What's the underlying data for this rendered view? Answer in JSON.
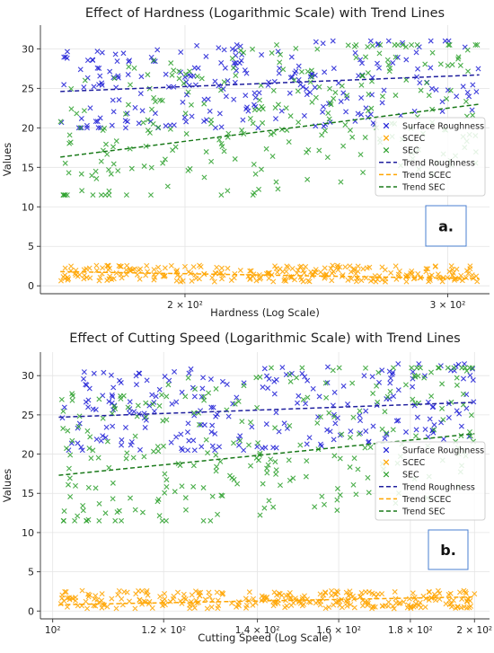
{
  "chart_data": [
    {
      "type": "scatter",
      "title": "Effect of Hardness (Logarithmic Scale) with Trend Lines",
      "xlabel": "Hardness (Log Scale)",
      "ylabel": "Values",
      "xscale": "log",
      "xlim": [
        160,
        320
      ],
      "ylim": [
        -1,
        33
      ],
      "yticks": [
        0,
        5,
        10,
        15,
        20,
        25,
        30
      ],
      "xticks": [
        {
          "value": 200,
          "label": "2 × 10²"
        },
        {
          "value": 300,
          "label": "3 × 10²"
        }
      ],
      "grid": true,
      "legend_position": "right",
      "panel_label": "a.",
      "series": [
        {
          "name": "Surface Roughness",
          "kind": "scatter",
          "marker": "x",
          "color": "#1f1fd6",
          "n": 230,
          "seed": 11,
          "x_range": [
            165,
            315
          ],
          "y_min": 20,
          "y_max": 31
        },
        {
          "name": "SCEC",
          "kind": "scatter",
          "marker": "x",
          "color": "#ffa500",
          "n": 260,
          "seed": 23,
          "x_range": [
            165,
            315
          ],
          "y_min": 0.5,
          "y_max": 2.6
        },
        {
          "name": "SEC",
          "kind": "scatter",
          "marker": "x",
          "color": "#2ca02c",
          "n": 270,
          "seed": 37,
          "x_range": [
            165,
            315
          ],
          "y_min": 11.5,
          "y_max": 30.5
        },
        {
          "name": "Trend Roughness",
          "kind": "trend",
          "color": "#1f1f9e",
          "x": [
            165,
            315
          ],
          "y": [
            24.6,
            26.7
          ]
        },
        {
          "name": "Trend SCEC",
          "kind": "trend",
          "color": "#ffa500",
          "x": [
            165,
            315
          ],
          "y": [
            1.8,
            0.9
          ]
        },
        {
          "name": "Trend SEC",
          "kind": "trend",
          "color": "#1a7a1a",
          "x": [
            165,
            315
          ],
          "y": [
            16.3,
            23.0
          ]
        }
      ]
    },
    {
      "type": "scatter",
      "title": "Effect of Cutting Speed (Logarithmic Scale) with Trend Lines",
      "xlabel": "Cutting Speed (Log Scale)",
      "ylabel": "Values",
      "xscale": "log",
      "xlim": [
        98,
        205
      ],
      "ylim": [
        -1,
        33
      ],
      "yticks": [
        0,
        5,
        10,
        15,
        20,
        25,
        30
      ],
      "xticks": [
        {
          "value": 100,
          "label": "10²"
        },
        {
          "value": 120,
          "label": "1.2 × 10²"
        },
        {
          "value": 140,
          "label": "1.4 × 10²"
        },
        {
          "value": 160,
          "label": "1.6 × 10²"
        },
        {
          "value": 180,
          "label": "1.8 × 10²"
        },
        {
          "value": 200,
          "label": "2 × 10²"
        }
      ],
      "grid": true,
      "legend_position": "right",
      "panel_label": "b.",
      "series": [
        {
          "name": "Surface Roughness",
          "kind": "scatter",
          "marker": "x",
          "color": "#1f1fd6",
          "n": 230,
          "seed": 53,
          "x_range": [
            101,
            200
          ],
          "y_min": 20.5,
          "y_max": 31.5
        },
        {
          "name": "SCEC",
          "kind": "scatter",
          "marker": "x",
          "color": "#ffa500",
          "n": 280,
          "seed": 67,
          "x_range": [
            101,
            200
          ],
          "y_min": 0.3,
          "y_max": 2.6
        },
        {
          "name": "SEC",
          "kind": "scatter",
          "marker": "x",
          "color": "#2ca02c",
          "n": 270,
          "seed": 79,
          "x_range": [
            101,
            200
          ],
          "y_min": 11.5,
          "y_max": 31
        },
        {
          "name": "Trend Roughness",
          "kind": "trend",
          "color": "#1f1f9e",
          "x": [
            101,
            200
          ],
          "y": [
            24.7,
            26.6
          ]
        },
        {
          "name": "Trend SCEC",
          "kind": "trend",
          "color": "#ffa500",
          "x": [
            101,
            200
          ],
          "y": [
            0.8,
            1.8
          ]
        },
        {
          "name": "Trend SEC",
          "kind": "trend",
          "color": "#1a7a1a",
          "x": [
            101,
            200
          ],
          "y": [
            17.3,
            22.6
          ]
        }
      ]
    }
  ]
}
